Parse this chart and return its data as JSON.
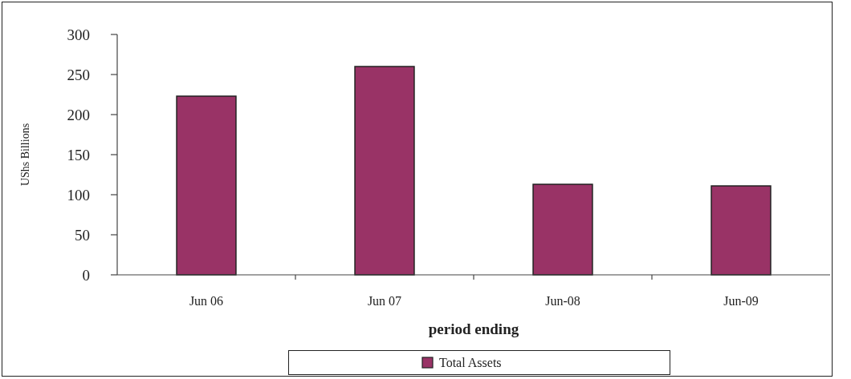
{
  "chart_data": {
    "type": "bar",
    "xlabel": "period ending",
    "ylabel": "UShs Billions",
    "categories": [
      "Jun 06",
      "Jun 07",
      "Jun-08",
      "Jun-09"
    ],
    "series": [
      {
        "name": "Total Assets",
        "color": "#993366",
        "values": [
          223,
          260,
          113,
          111
        ]
      }
    ],
    "ylim": [
      0,
      300
    ],
    "yticks": [
      0,
      50,
      100,
      150,
      200,
      250,
      300
    ],
    "grid": false,
    "legend": "bottom"
  }
}
